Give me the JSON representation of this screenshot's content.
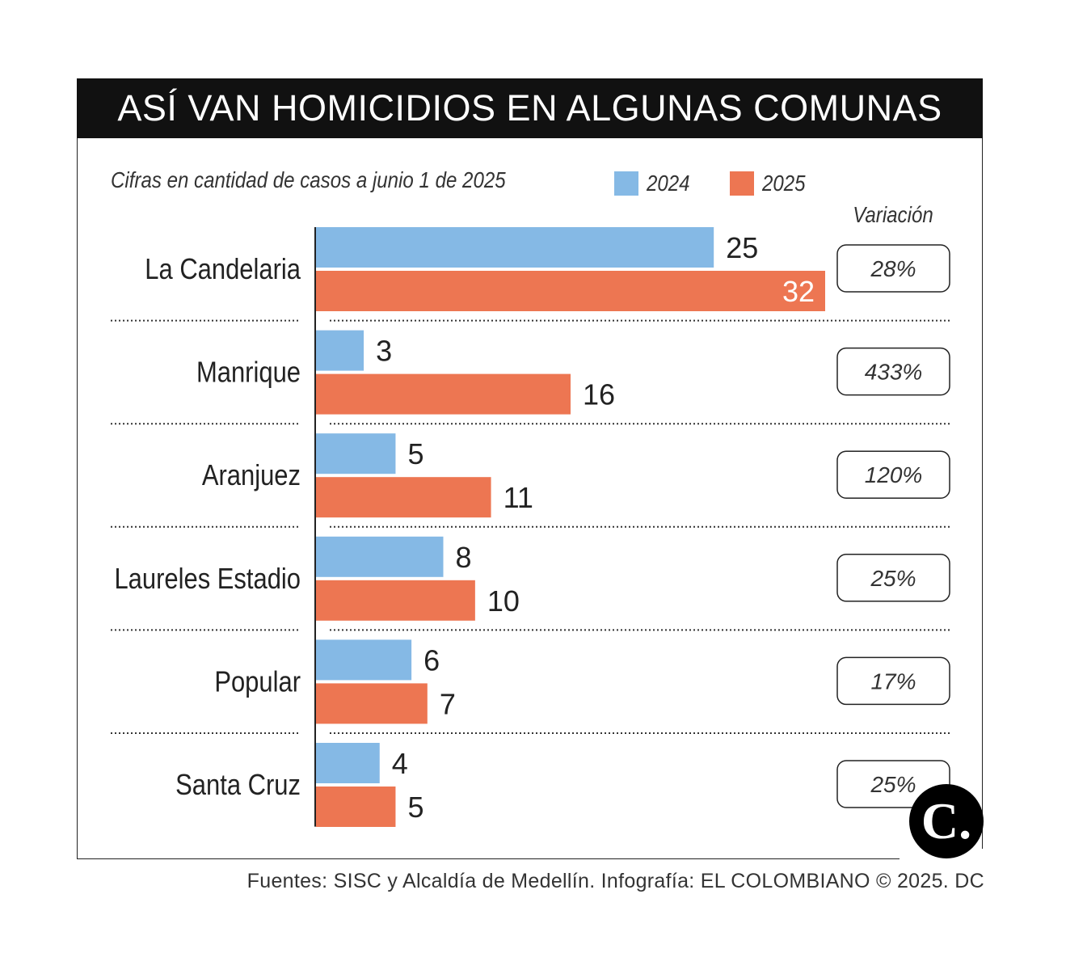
{
  "header": {
    "title": "ASÍ VAN HOMICIDIOS EN ALGUNAS COMUNAS"
  },
  "subtitle": "Cifras en cantidad de casos a junio 1 de 2025",
  "variation_header": "Variación",
  "footer": "Fuentes: SISC y Alcaldía de Medellín. Infografía: EL COLOMBIANO © 2025. DC",
  "logo_text": "C.",
  "colors": {
    "series_2024": "#85b9e5",
    "series_2025": "#ed7652"
  },
  "chart_data": {
    "type": "bar",
    "orientation": "horizontal",
    "title": "ASÍ VAN HOMICIDIOS EN ALGUNAS COMUNAS",
    "subtitle": "Cifras en cantidad de casos a junio 1 de 2025",
    "categories": [
      "La Candelaria",
      "Manrique",
      "Aranjuez",
      "Laureles Estadio",
      "Popular",
      "Santa Cruz"
    ],
    "series": [
      {
        "name": "2024",
        "values": [
          25,
          3,
          5,
          8,
          6,
          4
        ]
      },
      {
        "name": "2025",
        "values": [
          32,
          16,
          11,
          10,
          7,
          5
        ]
      }
    ],
    "variation": [
      "28%",
      "433%",
      "120%",
      "25%",
      "17%",
      "25%"
    ],
    "xlim": [
      0,
      32
    ],
    "grid": false,
    "legend": "top"
  }
}
